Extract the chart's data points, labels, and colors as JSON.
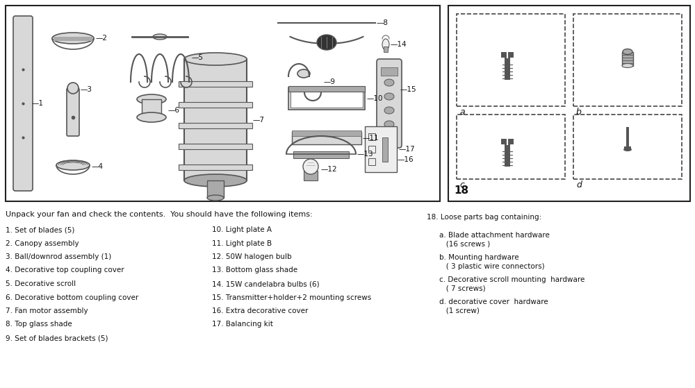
{
  "fig_width": 10.0,
  "fig_height": 5.59,
  "dpi": 100,
  "bg_color": "#ffffff",
  "box_color": "#222222",
  "text_color": "#111111",
  "light_gray": "#d8d8d8",
  "mid_gray": "#aaaaaa",
  "dark_gray": "#555555",
  "intro_text": "Unpack your fan and check the contents.  You should have the following items:",
  "col1_items": [
    "1. Set of blades (5)",
    "2. Canopy assembly",
    "3. Ball/downrod assembly (1)",
    "4. Decorative top coupling cover",
    "5. Decorative scroll",
    "6. Decorative bottom coupling cover",
    "7. Fan motor assembly",
    "8. Top glass shade",
    "9. Set of blades brackets (5)"
  ],
  "col2_items": [
    "10. Light plate A",
    "11. Light plate B",
    "12. 50W halogen bulb",
    "13. Bottom glass shade",
    "14. 15W candelabra bulbs (6)",
    "15. Transmitter+holder+2 mounting screws",
    "16. Extra decorative cover",
    "17. Balancing kit"
  ],
  "col3_header": "18. Loose parts bag containing:",
  "col3_items": [
    "a. Blade attachment hardware\n   (16 screws )",
    "b. Mounting hardware\n   ( 3 plastic wire connectors)",
    "c. Decorative scroll mounting  hardware\n   ( 7 screws)",
    "d. decorative cover  hardware\n   (1 screw)"
  ],
  "right_label": "18"
}
